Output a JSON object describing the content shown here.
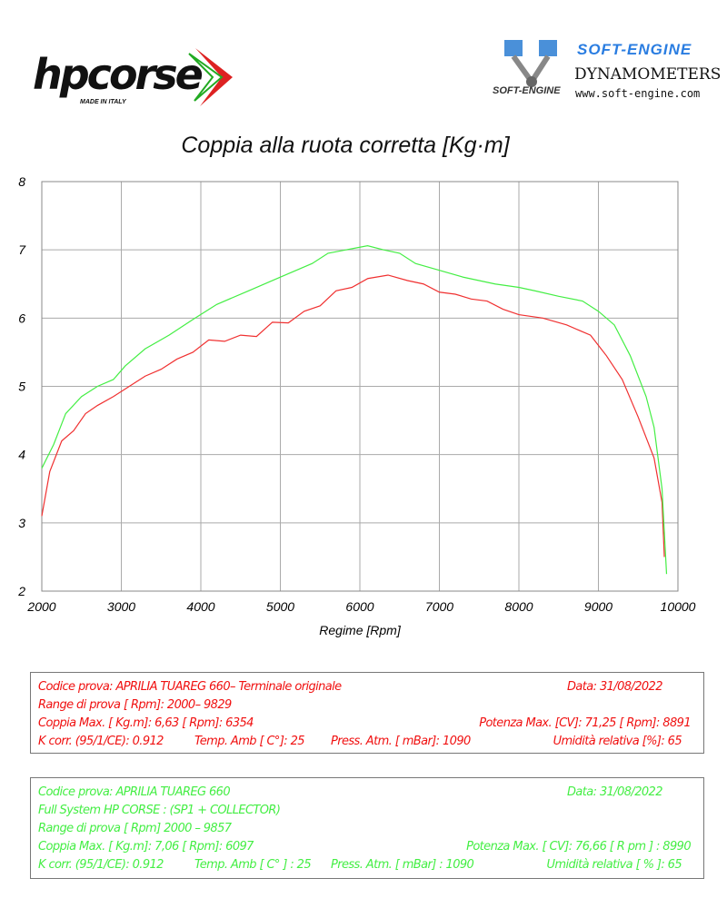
{
  "logos": {
    "hpcorse": {
      "text": "hpcorse",
      "sub": "MADE IN ITALY"
    },
    "softengine": {
      "name": "SOFT-ENGINE",
      "dyno": "DYNAMOMETERS",
      "url": "www.soft-engine.com",
      "mark": "SOFT-ENGINE"
    }
  },
  "colors": {
    "original": "#f03030",
    "hpcorse": "#44ee44",
    "grid": "#aaaaaa"
  },
  "chart_data": {
    "type": "line",
    "title": "Coppia alla ruota corretta [Kg·m]",
    "xlabel": "Regime [Rpm]",
    "ylabel": "",
    "xlim": [
      2000,
      10000
    ],
    "ylim": [
      2,
      8
    ],
    "xticks": [
      "2000",
      "3000",
      "4000",
      "5000",
      "6000",
      "7000",
      "8000",
      "9000",
      "10000"
    ],
    "yticks": [
      "2",
      "3",
      "4",
      "5",
      "6",
      "7",
      "8"
    ],
    "grid": true,
    "series": [
      {
        "color": "#f03030",
        "x": [
          2000,
          2100,
          2250,
          2400,
          2550,
          2700,
          2900,
          3100,
          3300,
          3500,
          3700,
          3900,
          4100,
          4300,
          4500,
          4700,
          4900,
          5100,
          5300,
          5500,
          5700,
          5900,
          6100,
          6354,
          6600,
          6800,
          7000,
          7200,
          7400,
          7600,
          7800,
          8000,
          8300,
          8600,
          8900,
          9100,
          9300,
          9500,
          9700,
          9800,
          9829
        ],
        "y": [
          3.1,
          3.75,
          4.2,
          4.35,
          4.6,
          4.72,
          4.85,
          5.0,
          5.15,
          5.25,
          5.4,
          5.5,
          5.68,
          5.66,
          5.75,
          5.73,
          5.94,
          5.93,
          6.1,
          6.18,
          6.4,
          6.45,
          6.58,
          6.63,
          6.55,
          6.5,
          6.38,
          6.35,
          6.28,
          6.25,
          6.13,
          6.05,
          6.0,
          5.9,
          5.75,
          5.45,
          5.1,
          4.55,
          3.95,
          3.3,
          2.5
        ]
      },
      {
        "color": "#44ee44",
        "x": [
          2000,
          2150,
          2300,
          2500,
          2700,
          2900,
          3050,
          3300,
          3600,
          3900,
          4200,
          4600,
          5000,
          5400,
          5600,
          6097,
          6300,
          6500,
          6700,
          7000,
          7300,
          7500,
          7700,
          8000,
          8200,
          8500,
          8800,
          9000,
          9200,
          9400,
          9600,
          9700,
          9800,
          9857
        ],
        "y": [
          3.8,
          4.15,
          4.6,
          4.85,
          5.0,
          5.1,
          5.3,
          5.55,
          5.75,
          5.98,
          6.2,
          6.4,
          6.6,
          6.8,
          6.95,
          7.06,
          7.0,
          6.95,
          6.8,
          6.7,
          6.6,
          6.55,
          6.5,
          6.45,
          6.4,
          6.32,
          6.25,
          6.1,
          5.9,
          5.45,
          4.85,
          4.4,
          3.5,
          2.25
        ]
      }
    ]
  },
  "box1": {
    "codice": "Codice prova: APRILIA TUAREG 660– Terminale originale",
    "data": "Data: 31/08/2022",
    "range": "Range di prova  [ Rpm]: 2000– 9829",
    "coppia": "Coppia Max. [ Kg.m]:  6,63 [ Rpm]: 6354",
    "potenza": "Potenza Max. [CV]:  71,25  [ Rpm]: 8891",
    "kcorr": "K corr. (95/1/CE): 0.912",
    "temp": "Temp. Amb  [ C°]: 25",
    "press": "Press. Atm.  [ mBar]: 1090",
    "umid": "Umidità relativa [%]: 65"
  },
  "box2": {
    "codice": "Codice prova: APRILIA TUAREG 660",
    "data": "Data: 31/08/2022",
    "system": "Full System HP CORSE :  (SP1  +  COLLECTOR)",
    "range": "Range di prova [ Rpm] 2000 – 9857",
    "coppia": "Coppia Max.  [ Kg.m]:  7,06  [ Rpm]:  6097",
    "potenza": "Potenza Max. [ CV]:  76,66   [ R pm ] : 8990",
    "kcorr": "K corr. (95/1/CE): 0.912",
    "temp": "Temp. Amb [ C° ] : 25",
    "press": "Press. Atm. [ mBar] : 1090",
    "umid": "Umidità relativa [ % ]: 65"
  }
}
